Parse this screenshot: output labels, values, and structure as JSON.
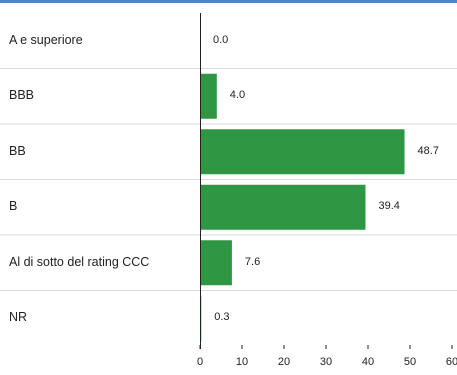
{
  "chart_data": {
    "type": "bar",
    "orientation": "horizontal",
    "categories": [
      "A e superiore",
      "BBB",
      "BB",
      "B",
      "Al di sotto del rating CCC",
      "NR"
    ],
    "values": [
      0.0,
      4.0,
      48.7,
      39.4,
      7.6,
      0.3
    ],
    "value_labels": [
      "0.0",
      "4.0",
      "48.7",
      "39.4",
      "7.6",
      "0.3"
    ],
    "xlim": [
      0,
      60
    ],
    "xticks": [
      "0",
      "10",
      "20",
      "30",
      "40",
      "50",
      "60"
    ],
    "title": "",
    "xlabel": "",
    "ylabel": "",
    "grid": "horizontal row separators",
    "legend": "none",
    "colors": {
      "bar": "#2f9744",
      "top_rule": "#4a86c8",
      "separator": "#d8d8d8",
      "axis": "#222222"
    }
  }
}
